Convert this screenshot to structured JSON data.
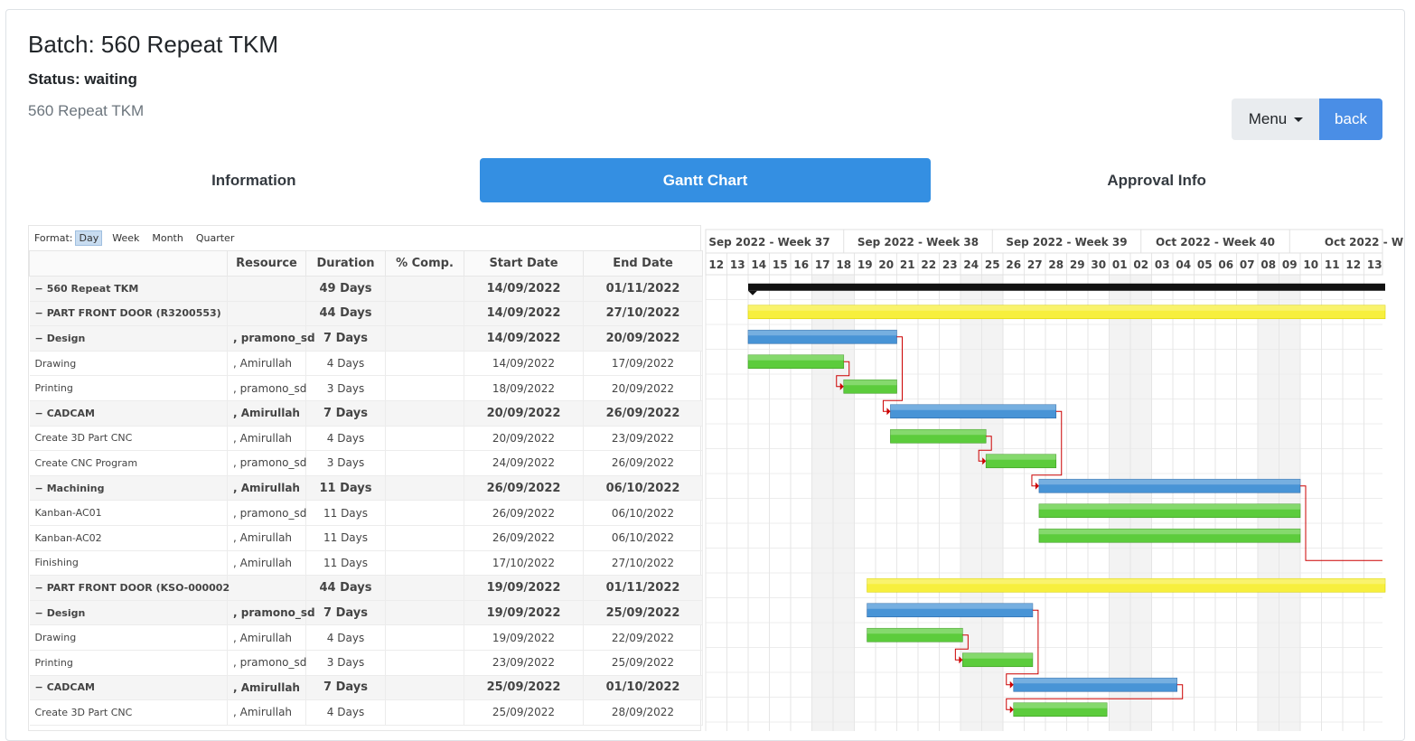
{
  "batch_title": "Batch: 560 Repeat TKM",
  "status": "Status: waiting",
  "subtitle": "560 Repeat TKM",
  "menu_label": "Menu",
  "back_label": "back",
  "tabs": [
    {
      "label": "Information",
      "active": false
    },
    {
      "label": "Gantt Chart",
      "active": true
    },
    {
      "label": "Approval Info",
      "active": false
    }
  ],
  "format": {
    "label": "Format:",
    "options": [
      "Day",
      "Week",
      "Month",
      "Quarter"
    ],
    "selected": "Day"
  },
  "columns": [
    "Resource",
    "Duration",
    "% Comp.",
    "Start Date",
    "End Date"
  ],
  "colors": {
    "parent": "#f7ef3d",
    "group": "#4894d6",
    "task": "#5ccc3c",
    "summary": "#111111",
    "dependency": "#cc0000",
    "weekend": "#f3f3f3"
  },
  "timeline": {
    "weeks": [
      "Sep 2022 - Week 37",
      "Sep 2022 - Week 38",
      "Sep 2022 - Week 39",
      "Oct 2022 - Week 40",
      "Oct 2022 - W"
    ],
    "days": [
      "12",
      "13",
      "14",
      "15",
      "16",
      "17",
      "18",
      "19",
      "20",
      "21",
      "22",
      "23",
      "24",
      "25",
      "26",
      "27",
      "28",
      "29",
      "30",
      "01",
      "02",
      "03",
      "04",
      "05",
      "06",
      "07",
      "08",
      "09",
      "10",
      "11",
      "12",
      "13"
    ],
    "weekend_days": [
      "17",
      "18",
      "24",
      "25",
      "01",
      "02",
      "08",
      "09"
    ]
  },
  "rows": [
    {
      "name": "560 Repeat TKM",
      "level": 0,
      "collapse": "−",
      "bold": true,
      "resource": "",
      "duration": "49 Days",
      "comp": "",
      "start": "14/09/2022",
      "end": "01/11/2022",
      "bar": "summary",
      "s": 2,
      "e": 32
    },
    {
      "name": "PART FRONT DOOR (R3200553)",
      "level": 1,
      "collapse": "−",
      "bold": true,
      "resource": "",
      "duration": "44 Days",
      "comp": "",
      "start": "14/09/2022",
      "end": "27/10/2022",
      "bar": "parent",
      "s": 2,
      "e": 32
    },
    {
      "name": "Design",
      "level": 2,
      "collapse": "−",
      "bold": true,
      "resource": ", pramono_sd",
      "duration": "7 Days",
      "comp": "",
      "start": "14/09/2022",
      "end": "20/09/2022",
      "bar": "group",
      "s": 2,
      "e": 9
    },
    {
      "name": "Drawing",
      "level": 3,
      "collapse": "",
      "bold": false,
      "resource": ", Amirullah",
      "duration": "4 Days",
      "comp": "",
      "start": "14/09/2022",
      "end": "17/09/2022",
      "bar": "task",
      "s": 2,
      "e": 6.5
    },
    {
      "name": "Printing",
      "level": 3,
      "collapse": "",
      "bold": false,
      "resource": ", pramono_sd",
      "duration": "3 Days",
      "comp": "",
      "start": "18/09/2022",
      "end": "20/09/2022",
      "bar": "task",
      "s": 6.5,
      "e": 9
    },
    {
      "name": "CADCAM",
      "level": 2,
      "collapse": "−",
      "bold": true,
      "resource": ", Amirullah",
      "duration": "7 Days",
      "comp": "",
      "start": "20/09/2022",
      "end": "26/09/2022",
      "bar": "group",
      "s": 8.7,
      "e": 16.5
    },
    {
      "name": "Create 3D Part CNC",
      "level": 3,
      "collapse": "",
      "bold": false,
      "resource": ", Amirullah",
      "duration": "4 Days",
      "comp": "",
      "start": "20/09/2022",
      "end": "23/09/2022",
      "bar": "task",
      "s": 8.7,
      "e": 13.2
    },
    {
      "name": "Create CNC Program",
      "level": 3,
      "collapse": "",
      "bold": false,
      "resource": ", pramono_sd",
      "duration": "3 Days",
      "comp": "",
      "start": "24/09/2022",
      "end": "26/09/2022",
      "bar": "task",
      "s": 13.2,
      "e": 16.5
    },
    {
      "name": "Machining",
      "level": 2,
      "collapse": "−",
      "bold": true,
      "resource": ", Amirullah",
      "duration": "11 Days",
      "comp": "",
      "start": "26/09/2022",
      "end": "06/10/2022",
      "bar": "group",
      "s": 15.7,
      "e": 28
    },
    {
      "name": "Kanban-AC01",
      "level": 3,
      "collapse": "",
      "bold": false,
      "resource": ", pramono_sd",
      "duration": "11 Days",
      "comp": "",
      "start": "26/09/2022",
      "end": "06/10/2022",
      "bar": "task",
      "s": 15.7,
      "e": 28
    },
    {
      "name": "Kanban-AC02",
      "level": 3,
      "collapse": "",
      "bold": false,
      "resource": ", Amirullah",
      "duration": "11 Days",
      "comp": "",
      "start": "26/09/2022",
      "end": "06/10/2022",
      "bar": "task",
      "s": 15.7,
      "e": 28
    },
    {
      "name": "Finishing",
      "level": 2.6,
      "collapse": "",
      "bold": false,
      "resource": ", Amirullah",
      "duration": "11 Days",
      "comp": "",
      "start": "17/10/2022",
      "end": "27/10/2022",
      "bar": "none",
      "s": 0,
      "e": 0
    },
    {
      "name": "PART FRONT DOOR (KSO-000002",
      "level": 1,
      "collapse": "−",
      "bold": true,
      "resource": "",
      "duration": "44 Days",
      "comp": "",
      "start": "19/09/2022",
      "end": "01/11/2022",
      "bar": "parent",
      "s": 7.6,
      "e": 32
    },
    {
      "name": "Design",
      "level": 2,
      "collapse": "−",
      "bold": true,
      "resource": ", pramono_sd",
      "duration": "7 Days",
      "comp": "",
      "start": "19/09/2022",
      "end": "25/09/2022",
      "bar": "group",
      "s": 7.6,
      "e": 15.4
    },
    {
      "name": "Drawing",
      "level": 3,
      "collapse": "",
      "bold": false,
      "resource": ", Amirullah",
      "duration": "4 Days",
      "comp": "",
      "start": "19/09/2022",
      "end": "22/09/2022",
      "bar": "task",
      "s": 7.6,
      "e": 12.1
    },
    {
      "name": "Printing",
      "level": 3,
      "collapse": "",
      "bold": false,
      "resource": ", pramono_sd",
      "duration": "3 Days",
      "comp": "",
      "start": "23/09/2022",
      "end": "25/09/2022",
      "bar": "task",
      "s": 12.1,
      "e": 15.4
    },
    {
      "name": "CADCAM",
      "level": 2,
      "collapse": "−",
      "bold": true,
      "resource": ", Amirullah",
      "duration": "7 Days",
      "comp": "",
      "start": "25/09/2022",
      "end": "01/10/2022",
      "bar": "group",
      "s": 14.5,
      "e": 22.2
    },
    {
      "name": "Create 3D Part CNC",
      "level": 3,
      "collapse": "",
      "bold": false,
      "resource": ", Amirullah",
      "duration": "4 Days",
      "comp": "",
      "start": "25/09/2022",
      "end": "28/09/2022",
      "bar": "task",
      "s": 14.5,
      "e": 18.9
    }
  ],
  "dependencies": [
    [
      3,
      4
    ],
    [
      2,
      5
    ],
    [
      6,
      7
    ],
    [
      5,
      8
    ],
    [
      8,
      11
    ],
    [
      14,
      15
    ],
    [
      13,
      16
    ],
    [
      16,
      17
    ]
  ]
}
